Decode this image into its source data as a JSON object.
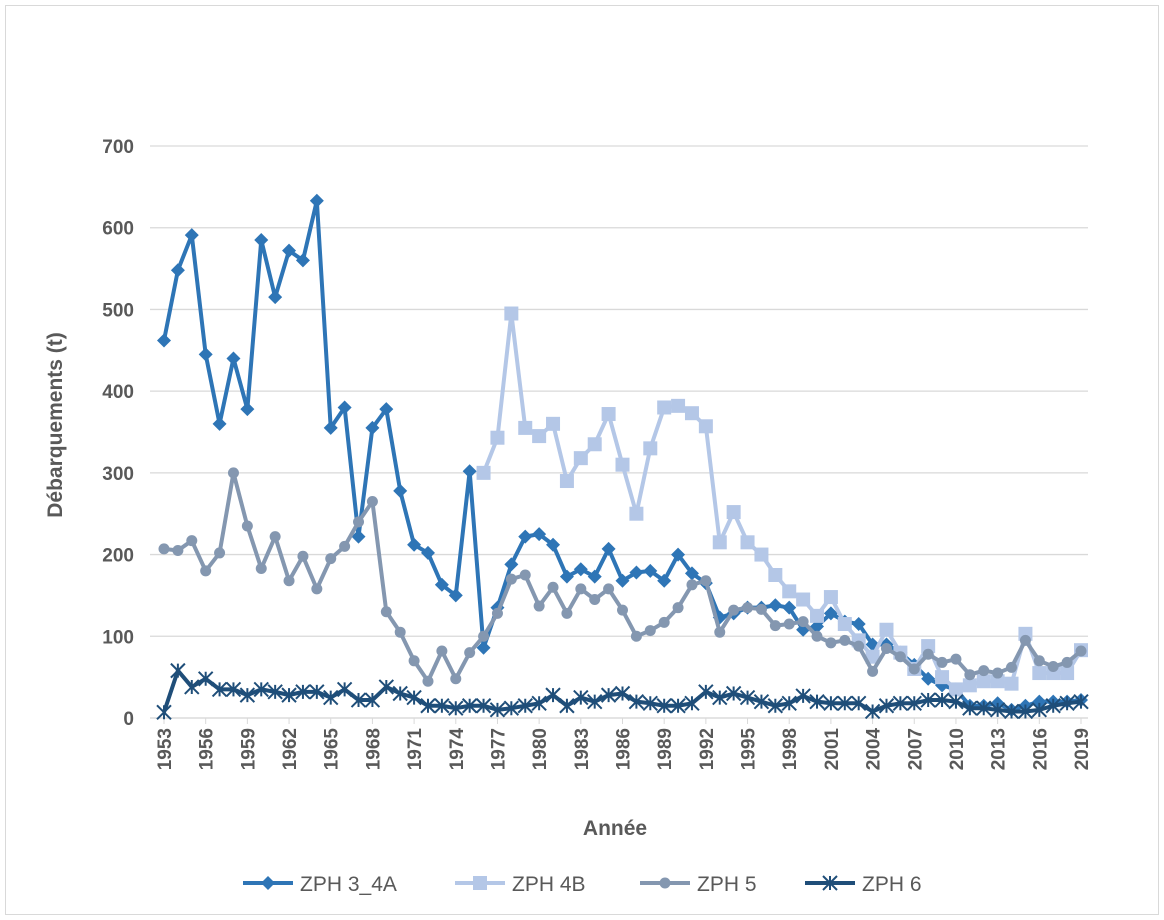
{
  "chart_data": {
    "type": "line",
    "x_label": "Année",
    "y_label": "Débarquements (t)",
    "x": [
      1953,
      1954,
      1955,
      1956,
      1957,
      1958,
      1959,
      1960,
      1961,
      1962,
      1963,
      1964,
      1965,
      1966,
      1967,
      1968,
      1969,
      1970,
      1971,
      1972,
      1973,
      1974,
      1975,
      1976,
      1977,
      1978,
      1979,
      1980,
      1981,
      1982,
      1983,
      1984,
      1985,
      1986,
      1987,
      1988,
      1989,
      1990,
      1991,
      1992,
      1993,
      1994,
      1995,
      1996,
      1997,
      1998,
      1999,
      2000,
      2001,
      2002,
      2003,
      2004,
      2005,
      2006,
      2007,
      2008,
      2009,
      2010,
      2011,
      2012,
      2013,
      2014,
      2015,
      2016,
      2017,
      2018,
      2019
    ],
    "xlim": [
      1953,
      2019
    ],
    "xticks": [
      1953,
      1956,
      1959,
      1962,
      1965,
      1968,
      1971,
      1974,
      1977,
      1980,
      1983,
      1986,
      1989,
      1992,
      1995,
      1998,
      2001,
      2004,
      2007,
      2010,
      2013,
      2016,
      2019
    ],
    "ylim": [
      0,
      700
    ],
    "yticks": [
      0,
      100,
      200,
      300,
      400,
      500,
      600,
      700
    ],
    "grid": true,
    "legend": "bottom",
    "series": [
      {
        "name": "ZPH 3_4A",
        "color": "#2e75b6",
        "marker": "diamond",
        "values": [
          462,
          548,
          591,
          445,
          360,
          440,
          378,
          585,
          515,
          572,
          560,
          633,
          355,
          380,
          222,
          355,
          378,
          278,
          212,
          202,
          163,
          150,
          302,
          86,
          135,
          188,
          222,
          225,
          212,
          173,
          182,
          173,
          207,
          168,
          178,
          180,
          168,
          200,
          177,
          165,
          123,
          128,
          135,
          135,
          138,
          135,
          108,
          112,
          128,
          118,
          115,
          90,
          90,
          80,
          65,
          48,
          40,
          35,
          15,
          15,
          18,
          10,
          15,
          20,
          20,
          20,
          22
        ]
      },
      {
        "name": "ZPH 4B",
        "color": "#b4c7e7",
        "marker": "square",
        "values": [
          null,
          null,
          null,
          null,
          null,
          null,
          null,
          null,
          null,
          null,
          null,
          null,
          null,
          null,
          null,
          null,
          null,
          null,
          null,
          null,
          null,
          null,
          null,
          300,
          343,
          495,
          355,
          345,
          360,
          290,
          318,
          335,
          372,
          310,
          250,
          330,
          380,
          382,
          373,
          357,
          215,
          252,
          215,
          200,
          175,
          155,
          145,
          125,
          148,
          115,
          95,
          75,
          108,
          80,
          60,
          88,
          50,
          35,
          40,
          45,
          45,
          42,
          103,
          55,
          55,
          55,
          83
        ]
      },
      {
        "name": "ZPH 5",
        "color": "#8497b0",
        "marker": "circle",
        "values": [
          207,
          205,
          217,
          180,
          202,
          300,
          235,
          183,
          222,
          168,
          198,
          158,
          195,
          210,
          240,
          265,
          130,
          105,
          70,
          45,
          82,
          48,
          80,
          100,
          128,
          170,
          175,
          137,
          160,
          128,
          158,
          145,
          158,
          132,
          100,
          107,
          117,
          135,
          163,
          168,
          105,
          132,
          135,
          133,
          113,
          115,
          118,
          100,
          92,
          95,
          88,
          57,
          85,
          75,
          60,
          78,
          68,
          72,
          53,
          58,
          55,
          62,
          95,
          70,
          63,
          68,
          82
        ]
      },
      {
        "name": "ZPH 6",
        "color": "#1f4e79",
        "marker": "asterisk",
        "values": [
          7,
          58,
          38,
          48,
          35,
          35,
          28,
          35,
          32,
          28,
          32,
          32,
          25,
          35,
          22,
          22,
          38,
          30,
          25,
          15,
          15,
          12,
          15,
          15,
          10,
          12,
          15,
          18,
          28,
          15,
          25,
          20,
          28,
          30,
          20,
          18,
          15,
          15,
          18,
          32,
          25,
          30,
          25,
          20,
          15,
          18,
          27,
          20,
          18,
          18,
          18,
          8,
          15,
          18,
          18,
          22,
          22,
          20,
          12,
          12,
          10,
          8,
          8,
          10,
          15,
          18,
          20
        ]
      }
    ]
  }
}
